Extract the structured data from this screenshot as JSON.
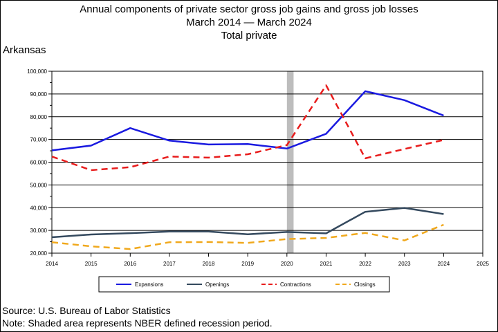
{
  "title": {
    "line1": "Annual components of private sector gross job gains and gross job losses",
    "line2": "March 2014 — March 2024",
    "line3": "Total private"
  },
  "state": "Arkansas",
  "footer": {
    "source": "Source: U.S. Bureau of Labor Statistics",
    "note": "Note: Shaded area represents NBER defined recession period."
  },
  "chart_data": {
    "type": "line",
    "x": [
      2014,
      2015,
      2016,
      2017,
      2018,
      2019,
      2020,
      2021,
      2022,
      2023,
      2024
    ],
    "xlim": [
      2014,
      2025
    ],
    "x_ticks": [
      "2014",
      "2015",
      "2016",
      "2017",
      "2018",
      "2019",
      "2020",
      "2021",
      "2022",
      "2023",
      "2024",
      "2025"
    ],
    "ylim": [
      20000,
      100000
    ],
    "y_ticks": [
      "20,000",
      "30,000",
      "40,000",
      "50,000",
      "60,000",
      "70,000",
      "80,000",
      "90,000",
      "100,000"
    ],
    "grid": "horizontal",
    "legend_position": "bottom",
    "recession": {
      "start": 2020.0,
      "end": 2020.17,
      "color": "#bdbdbd"
    },
    "series": [
      {
        "name": "Expansions",
        "color": "#1a1ae0",
        "style": "solid",
        "width": 2.5,
        "values": [
          65200,
          67300,
          75000,
          69500,
          67800,
          68000,
          66000,
          72500,
          91200,
          87300,
          80500
        ]
      },
      {
        "name": "Openings",
        "color": "#34495e",
        "style": "solid",
        "width": 2.5,
        "values": [
          27000,
          28200,
          28800,
          29500,
          29500,
          28300,
          29300,
          28700,
          38200,
          39900,
          37200
        ]
      },
      {
        "name": "Contractions",
        "color": "#e81c1c",
        "style": "dashed",
        "width": 2.5,
        "values": [
          62500,
          56500,
          57800,
          62500,
          62000,
          63500,
          67500,
          93800,
          61700,
          65800,
          69800
        ]
      },
      {
        "name": "Closings",
        "color": "#f0a81c",
        "style": "dashed",
        "width": 2.5,
        "values": [
          24800,
          23000,
          21800,
          24800,
          24900,
          24500,
          26200,
          26700,
          28900,
          25600,
          32500
        ]
      }
    ]
  }
}
